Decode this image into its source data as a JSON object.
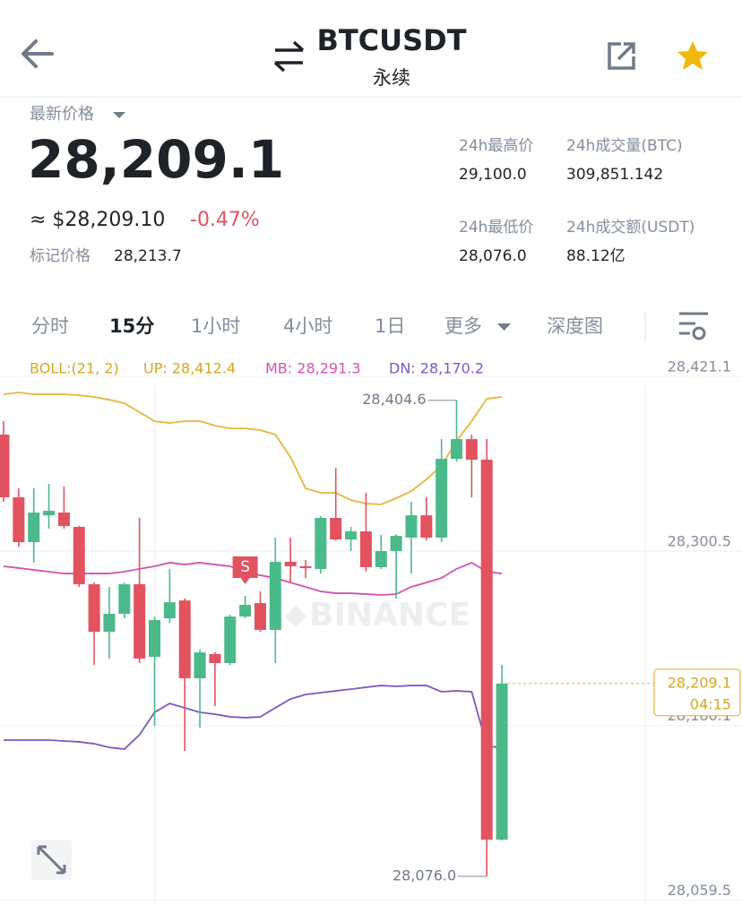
{
  "header": {
    "title": "BTCUSDT",
    "subtitle": "永续"
  },
  "price": {
    "label": "最新价格",
    "last": "28,209.1",
    "usd": "≈ $28,209.10",
    "change": "-0.47%",
    "mark_label": "标记价格",
    "mark_value": "28,213.7"
  },
  "stats": [
    {
      "label": "24h最高价",
      "value": "29,100.0"
    },
    {
      "label": "24h成交量(BTC)",
      "value": "309,851.142"
    },
    {
      "label": "24h最低价",
      "value": "28,076.0"
    },
    {
      "label": "24h成交额(USDT)",
      "value": "88.12亿"
    }
  ],
  "tabs": [
    "分时",
    "15分",
    "1小时",
    "4小时",
    "1日",
    "更多",
    "深度图"
  ],
  "indicator": {
    "name": "BOLL:(21, 2)",
    "up": "UP: 28,412.4",
    "mb": "MB: 28,291.3",
    "dn": "DN: 28,170.2"
  },
  "chart_data": {
    "type": "candlestick",
    "watermark": "BINANCE",
    "marker": "S",
    "up_color": "#4cb98a",
    "down_color": "#e2525f",
    "ylim": [
      28056.2,
      28433.5
    ],
    "yticks": [
      {
        "value": 28421.1,
        "label": "28,421.1"
      },
      {
        "value": 28300.5,
        "label": "28,300.5"
      },
      {
        "value": 28180.1,
        "label": "28,180.1"
      },
      {
        "value": 28059.5,
        "label": "28,059.5"
      }
    ],
    "grid": true,
    "open": [
      28380.9,
      28337.6,
      28306.7,
      28325.2,
      28327.1,
      28317.2,
      28277.6,
      28244.8,
      28257.2,
      28277.6,
      28227.5,
      28254.1,
      28266.4,
      28212.7,
      28229.4,
      28223.2,
      28255.3,
      28264.6,
      28246.1,
      28293.1,
      28290.0,
      28288.2,
      28323.4,
      28308.5,
      28314.1,
      28289.4,
      28300.5,
      28309.8,
      28325.2,
      28309.8,
      28364.2,
      28377.8,
      28363.6,
      28101.3
    ],
    "high": [
      28390.2,
      28343.8,
      28343.8,
      28346.9,
      28345.0,
      28317.8,
      28278.8,
      28275.8,
      28278.8,
      28323.4,
      28255.3,
      28288.2,
      28267.7,
      28232.5,
      28230.6,
      28256.6,
      28269.6,
      28272.7,
      28309.8,
      28309.8,
      28294.3,
      28324.6,
      28358.0,
      28317.2,
      28340.7,
      28311.6,
      28312.2,
      28334.5,
      28337.6,
      28377.8,
      28404.6,
      28380.9,
      28377.8,
      28221.9
    ],
    "low": [
      28334.5,
      28303.6,
      28292.5,
      28316.0,
      28316.0,
      28275.8,
      28221.9,
      28226.3,
      28254.1,
      28223.2,
      28179.9,
      28251.0,
      28162.6,
      28178.7,
      28193.5,
      28221.9,
      28254.1,
      28244.8,
      28223.2,
      28278.8,
      28281.9,
      28285.0,
      28307.9,
      28300.5,
      28286.3,
      28288.2,
      28267.7,
      28285.0,
      28307.9,
      28306.7,
      28362.3,
      28337.6,
      28076.0,
      28100.7
    ],
    "close": [
      28337.6,
      28306.7,
      28327.1,
      28328.3,
      28317.8,
      28277.6,
      28244.8,
      28257.2,
      28277.6,
      28226.3,
      28252.9,
      28265.2,
      28212.7,
      28230.6,
      28223.2,
      28255.3,
      28263.4,
      28246.1,
      28293.1,
      28290.0,
      28288.8,
      28323.4,
      28308.5,
      28314.1,
      28289.4,
      28300.5,
      28311.0,
      28325.2,
      28309.8,
      28364.2,
      28377.8,
      28363.6,
      28101.3,
      28209.1
    ],
    "series": [
      {
        "name": "UP",
        "color": "#e6b53c",
        "values": [
          28408.7,
          28410.0,
          28408.7,
          28408.7,
          28408.7,
          28408.1,
          28406.9,
          28405.0,
          28402.5,
          28396.4,
          28390.2,
          28388.9,
          28390.2,
          28390.2,
          28387.1,
          28385.2,
          28385.2,
          28384.0,
          28380.9,
          28365.4,
          28343.8,
          28340.7,
          28340.7,
          28335.7,
          28333.3,
          28332.7,
          28337.0,
          28341.9,
          28350.0,
          28359.3,
          28376.6,
          28390.2,
          28405.6,
          28406.9
        ]
      },
      {
        "name": "MB",
        "color": "#d54fb4",
        "values": [
          28290.0,
          28288.8,
          28287.5,
          28286.3,
          28285.0,
          28285.0,
          28285.0,
          28285.0,
          28286.3,
          28288.2,
          28290.0,
          28292.5,
          28291.2,
          28292.5,
          28291.2,
          28290.0,
          28286.3,
          28283.8,
          28281.9,
          28278.8,
          28275.8,
          28272.7,
          28271.4,
          28271.4,
          28270.8,
          28270.2,
          28270.8,
          28275.8,
          28278.8,
          28281.9,
          28288.2,
          28292.5,
          28286.3,
          28285.0
        ]
      },
      {
        "name": "DN",
        "color": "#7e57c6",
        "values": [
          28170.0,
          28170.0,
          28170.0,
          28170.0,
          28169.4,
          28168.8,
          28167.5,
          28165.0,
          28163.8,
          28173.7,
          28189.2,
          28195.3,
          28192.3,
          28189.2,
          28187.9,
          28186.1,
          28185.5,
          28186.1,
          28192.3,
          28198.4,
          28201.5,
          28202.8,
          28204.0,
          28205.2,
          28206.5,
          28207.7,
          28207.1,
          28207.7,
          28207.7,
          28203.4,
          28204.0,
          28203.4,
          28166.3,
          28164.4
        ]
      }
    ],
    "annotations": [
      {
        "value": 28404.6,
        "label": "28,404.6"
      },
      {
        "value": 28076.0,
        "label": "28,076.0"
      }
    ],
    "last_price": {
      "value": 28209.1,
      "label": "28,209.1"
    },
    "countdown": "04:15"
  }
}
